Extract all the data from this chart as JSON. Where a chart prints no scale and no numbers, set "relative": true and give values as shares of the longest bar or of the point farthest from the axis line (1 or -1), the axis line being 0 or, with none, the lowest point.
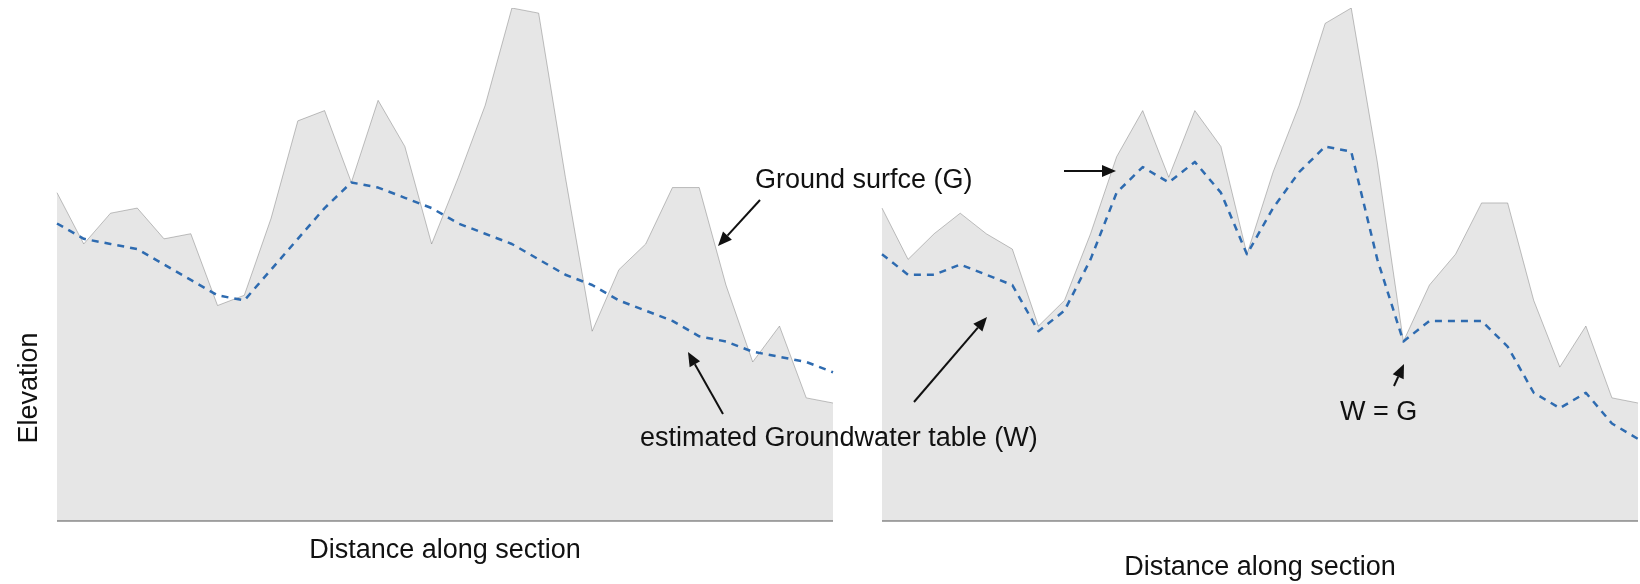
{
  "chart_data": [
    {
      "type": "area",
      "relative": true,
      "xlabel": "Distance along section",
      "ylabel": "Elevation",
      "marker": "none",
      "categories": [
        null,
        null,
        null,
        null,
        null,
        null,
        null,
        null,
        null,
        null,
        null,
        null,
        null,
        null,
        null,
        null,
        null,
        null,
        null,
        null,
        null,
        null,
        null,
        null,
        null,
        null,
        null,
        null,
        null,
        null
      ],
      "series": [
        {
          "color": "#e6e6e6",
          "values": [
            0.64,
            0.54,
            0.6,
            0.61,
            0.55,
            0.56,
            0.42,
            0.44,
            0.59,
            0.78,
            0.8,
            0.66,
            0.82,
            0.73,
            0.54,
            0.67,
            0.81,
            1,
            0.99,
            0.67,
            0.37,
            0.49,
            0.54,
            0.65,
            0.65,
            0.46,
            0.31,
            0.38,
            0.24,
            0.23
          ]
        },
        {
          "type": "line",
          "line_style": "dashed",
          "color": "#2e6bb0",
          "values": [
            0.58,
            0.55,
            0.54,
            0.53,
            0.5,
            0.47,
            0.44,
            0.43,
            0.49,
            0.55,
            0.61,
            0.66,
            0.65,
            0.63,
            0.61,
            0.58,
            0.56,
            0.54,
            0.51,
            0.48,
            0.46,
            0.43,
            0.41,
            0.39,
            0.36,
            0.35,
            0.33,
            0.32,
            0.31,
            0.29
          ]
        }
      ],
      "annotations": [
        "Ground surfce (G)",
        "estimated Groundwater table (W)"
      ]
    },
    {
      "type": "area",
      "relative": true,
      "xlabel": "Distance along section",
      "marker": "none",
      "categories": [
        null,
        null,
        null,
        null,
        null,
        null,
        null,
        null,
        null,
        null,
        null,
        null,
        null,
        null,
        null,
        null,
        null,
        null,
        null,
        null,
        null,
        null,
        null,
        null,
        null,
        null,
        null,
        null,
        null,
        null
      ],
      "series": [
        {
          "color": "#e6e6e6",
          "values": [
            0.61,
            0.51,
            0.56,
            0.6,
            0.56,
            0.53,
            0.38,
            0.43,
            0.56,
            0.71,
            0.8,
            0.67,
            0.8,
            0.73,
            0.52,
            0.68,
            0.81,
            0.97,
            1,
            0.7,
            0.35,
            0.46,
            0.52,
            0.62,
            0.62,
            0.43,
            0.3,
            0.38,
            0.24,
            0.23
          ]
        },
        {
          "type": "line",
          "line_style": "dashed",
          "color": "#2e6bb0",
          "values": [
            0.52,
            0.48,
            0.48,
            0.5,
            0.48,
            0.46,
            0.37,
            0.41,
            0.51,
            0.64,
            0.69,
            0.66,
            0.7,
            0.64,
            0.52,
            0.61,
            0.68,
            0.73,
            0.72,
            0.51,
            0.35,
            0.39,
            0.39,
            0.39,
            0.34,
            0.25,
            0.22,
            0.25,
            0.19,
            0.16
          ]
        }
      ],
      "annotations": [
        "W = G"
      ]
    }
  ]
}
